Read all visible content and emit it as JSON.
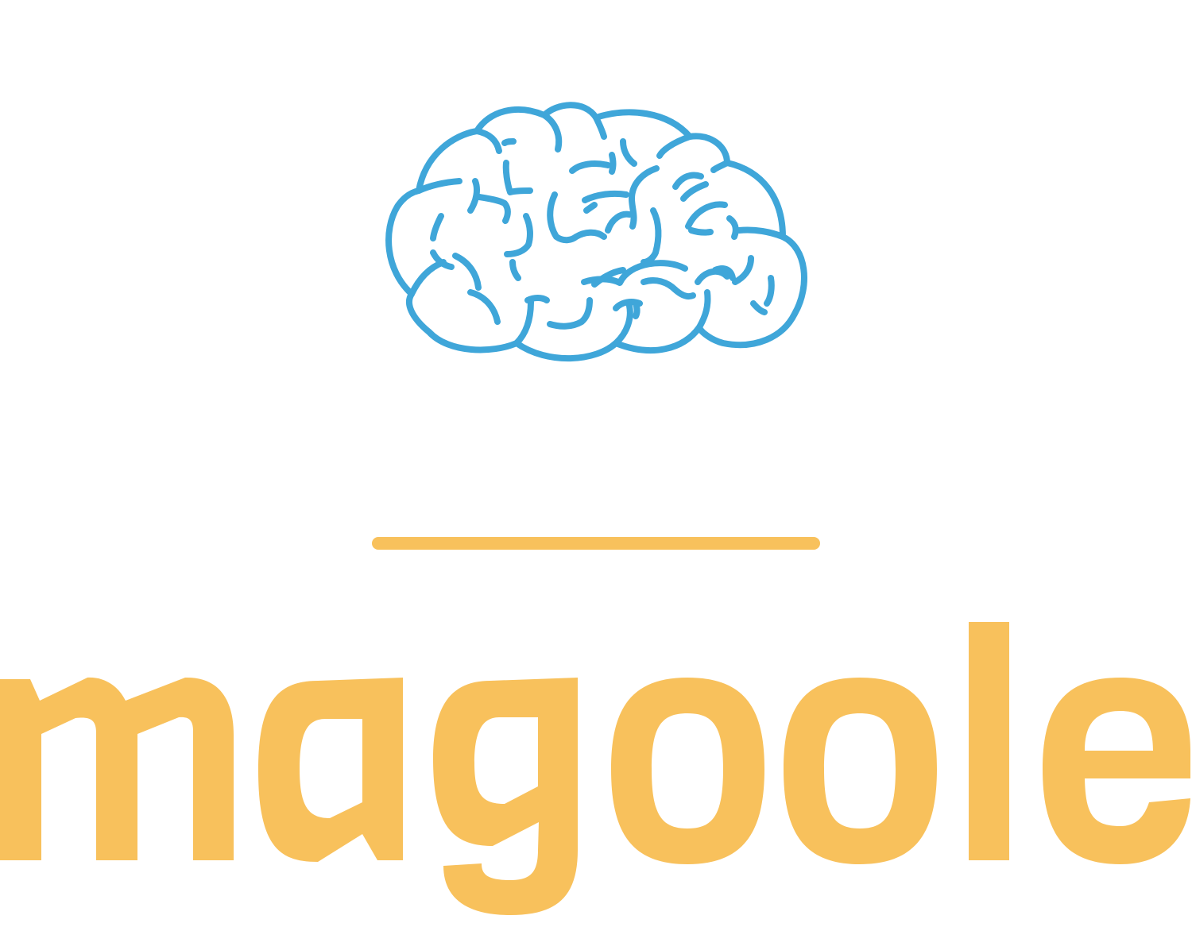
{
  "logo": {
    "icon": "brain-icon",
    "brand_name": "magoole"
  },
  "colors": {
    "brain_stroke": "#3fa6d9",
    "accent": "#f8c15c",
    "background": "#ffffff"
  }
}
